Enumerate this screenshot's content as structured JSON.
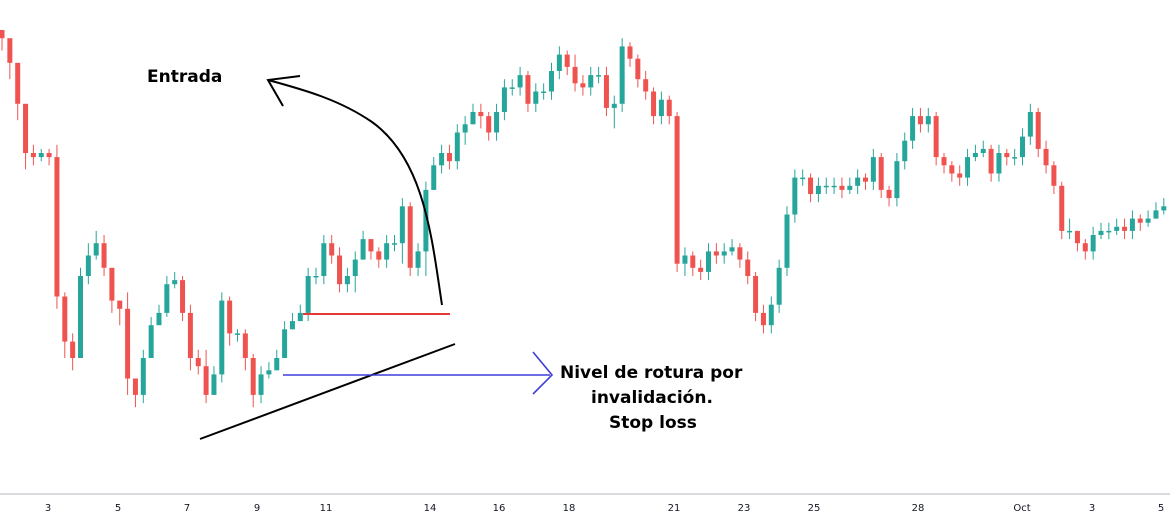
{
  "colors": {
    "up": "#26a69a",
    "down": "#ef5350",
    "arrow_entry": "#000000",
    "support_line": "#000000",
    "resistance_line": "#e53935",
    "stop_arrow": "#3f3fd8"
  },
  "annotations": {
    "entry_label": "Entrada",
    "stop_label_line1": "Nivel de rotura por",
    "stop_label_line2": "invalidación.",
    "stop_label_line3": "Stop loss"
  },
  "chart_data": {
    "type": "candlestick",
    "title": "",
    "xlabel": "",
    "ylabel": "",
    "ylim": [
      0,
      100
    ],
    "grid": false,
    "x_tick_labels": [
      "3",
      "5",
      "7",
      "9",
      "11",
      "14",
      "16",
      "18",
      "21",
      "23",
      "25",
      "28",
      "Oct",
      "3",
      "5"
    ],
    "closes": [
      98,
      92,
      82,
      70,
      69,
      70,
      69,
      35,
      24,
      20,
      40,
      45,
      48,
      42,
      34,
      32,
      15,
      11,
      20,
      28,
      31,
      38,
      39,
      31,
      20,
      18,
      11,
      16,
      34,
      26,
      26,
      20,
      11,
      16,
      17,
      20,
      27,
      29,
      31,
      40,
      40,
      48,
      45,
      38,
      40,
      44,
      49,
      46,
      44,
      48,
      48,
      57,
      42,
      46,
      61,
      67,
      70,
      68,
      75,
      77,
      80,
      79,
      75,
      80,
      86,
      86,
      89,
      82,
      85,
      85,
      90,
      94,
      91,
      87,
      86,
      89,
      89,
      81,
      82,
      96,
      93,
      88,
      85,
      79,
      83,
      79,
      43,
      45,
      42,
      41,
      46,
      45,
      46,
      47,
      44,
      40,
      31,
      28,
      33,
      42,
      55,
      64,
      64,
      60,
      62,
      62,
      62,
      61,
      62,
      64,
      63,
      69,
      61,
      59,
      68,
      73,
      79,
      77,
      79,
      69,
      67,
      65,
      64,
      69,
      70,
      71,
      65,
      70,
      69,
      69,
      74,
      80,
      71,
      67,
      62,
      51,
      51,
      48,
      46,
      50,
      51,
      51,
      52,
      51,
      54,
      53,
      54,
      56,
      57
    ],
    "highs": [
      100,
      94,
      86,
      75,
      72,
      71,
      71,
      72,
      36,
      26,
      42,
      48,
      51,
      50,
      37,
      34,
      36,
      14,
      22,
      30,
      33,
      40,
      41,
      40,
      33,
      22,
      22,
      18,
      36,
      35,
      27,
      27,
      21,
      18,
      19,
      22,
      29,
      31,
      33,
      42,
      42,
      50,
      50,
      47,
      42,
      46,
      51,
      49,
      47,
      50,
      50,
      59,
      58,
      48,
      63,
      69,
      72,
      72,
      77,
      79,
      82,
      82,
      80,
      82,
      88,
      88,
      91,
      90,
      87,
      87,
      92,
      96,
      95,
      94,
      89,
      91,
      91,
      91,
      84,
      98,
      97,
      94,
      90,
      86,
      85,
      84,
      80,
      47,
      46,
      44,
      48,
      48,
      48,
      49,
      48,
      46,
      41,
      33,
      35,
      44,
      57,
      66,
      66,
      65,
      64,
      64,
      64,
      64,
      64,
      66,
      65,
      71,
      70,
      62,
      70,
      75,
      81,
      81,
      81,
      80,
      70,
      68,
      67,
      71,
      72,
      73,
      72,
      72,
      71,
      71,
      76,
      82,
      81,
      73,
      68,
      63,
      54,
      51,
      49,
      52,
      53,
      53,
      54,
      54,
      56,
      55,
      56,
      58,
      59
    ],
    "lows": [
      95,
      88,
      78,
      66,
      67,
      68,
      67,
      32,
      20,
      17,
      22,
      38,
      44,
      40,
      31,
      28,
      11,
      8,
      9,
      26,
      29,
      30,
      37,
      29,
      17,
      16,
      9,
      11,
      14,
      23,
      24,
      17,
      8,
      9,
      15,
      18,
      25,
      27,
      29,
      29,
      38,
      38,
      43,
      36,
      36,
      36,
      44,
      44,
      42,
      42,
      46,
      43,
      40,
      40,
      40,
      62,
      65,
      66,
      66,
      72,
      77,
      76,
      73,
      73,
      78,
      84,
      84,
      80,
      80,
      83,
      83,
      88,
      89,
      85,
      84,
      84,
      87,
      79,
      76,
      80,
      91,
      86,
      83,
      77,
      77,
      77,
      41,
      40,
      40,
      39,
      39,
      43,
      43,
      45,
      42,
      38,
      29,
      26,
      26,
      31,
      40,
      53,
      62,
      58,
      58,
      60,
      60,
      59,
      60,
      60,
      61,
      61,
      59,
      57,
      57,
      66,
      71,
      75,
      75,
      67,
      65,
      63,
      62,
      62,
      68,
      69,
      63,
      63,
      67,
      67,
      67,
      72,
      69,
      65,
      60,
      49,
      49,
      46,
      44,
      44,
      49,
      49,
      50,
      49,
      49,
      51,
      52,
      54,
      55
    ]
  }
}
